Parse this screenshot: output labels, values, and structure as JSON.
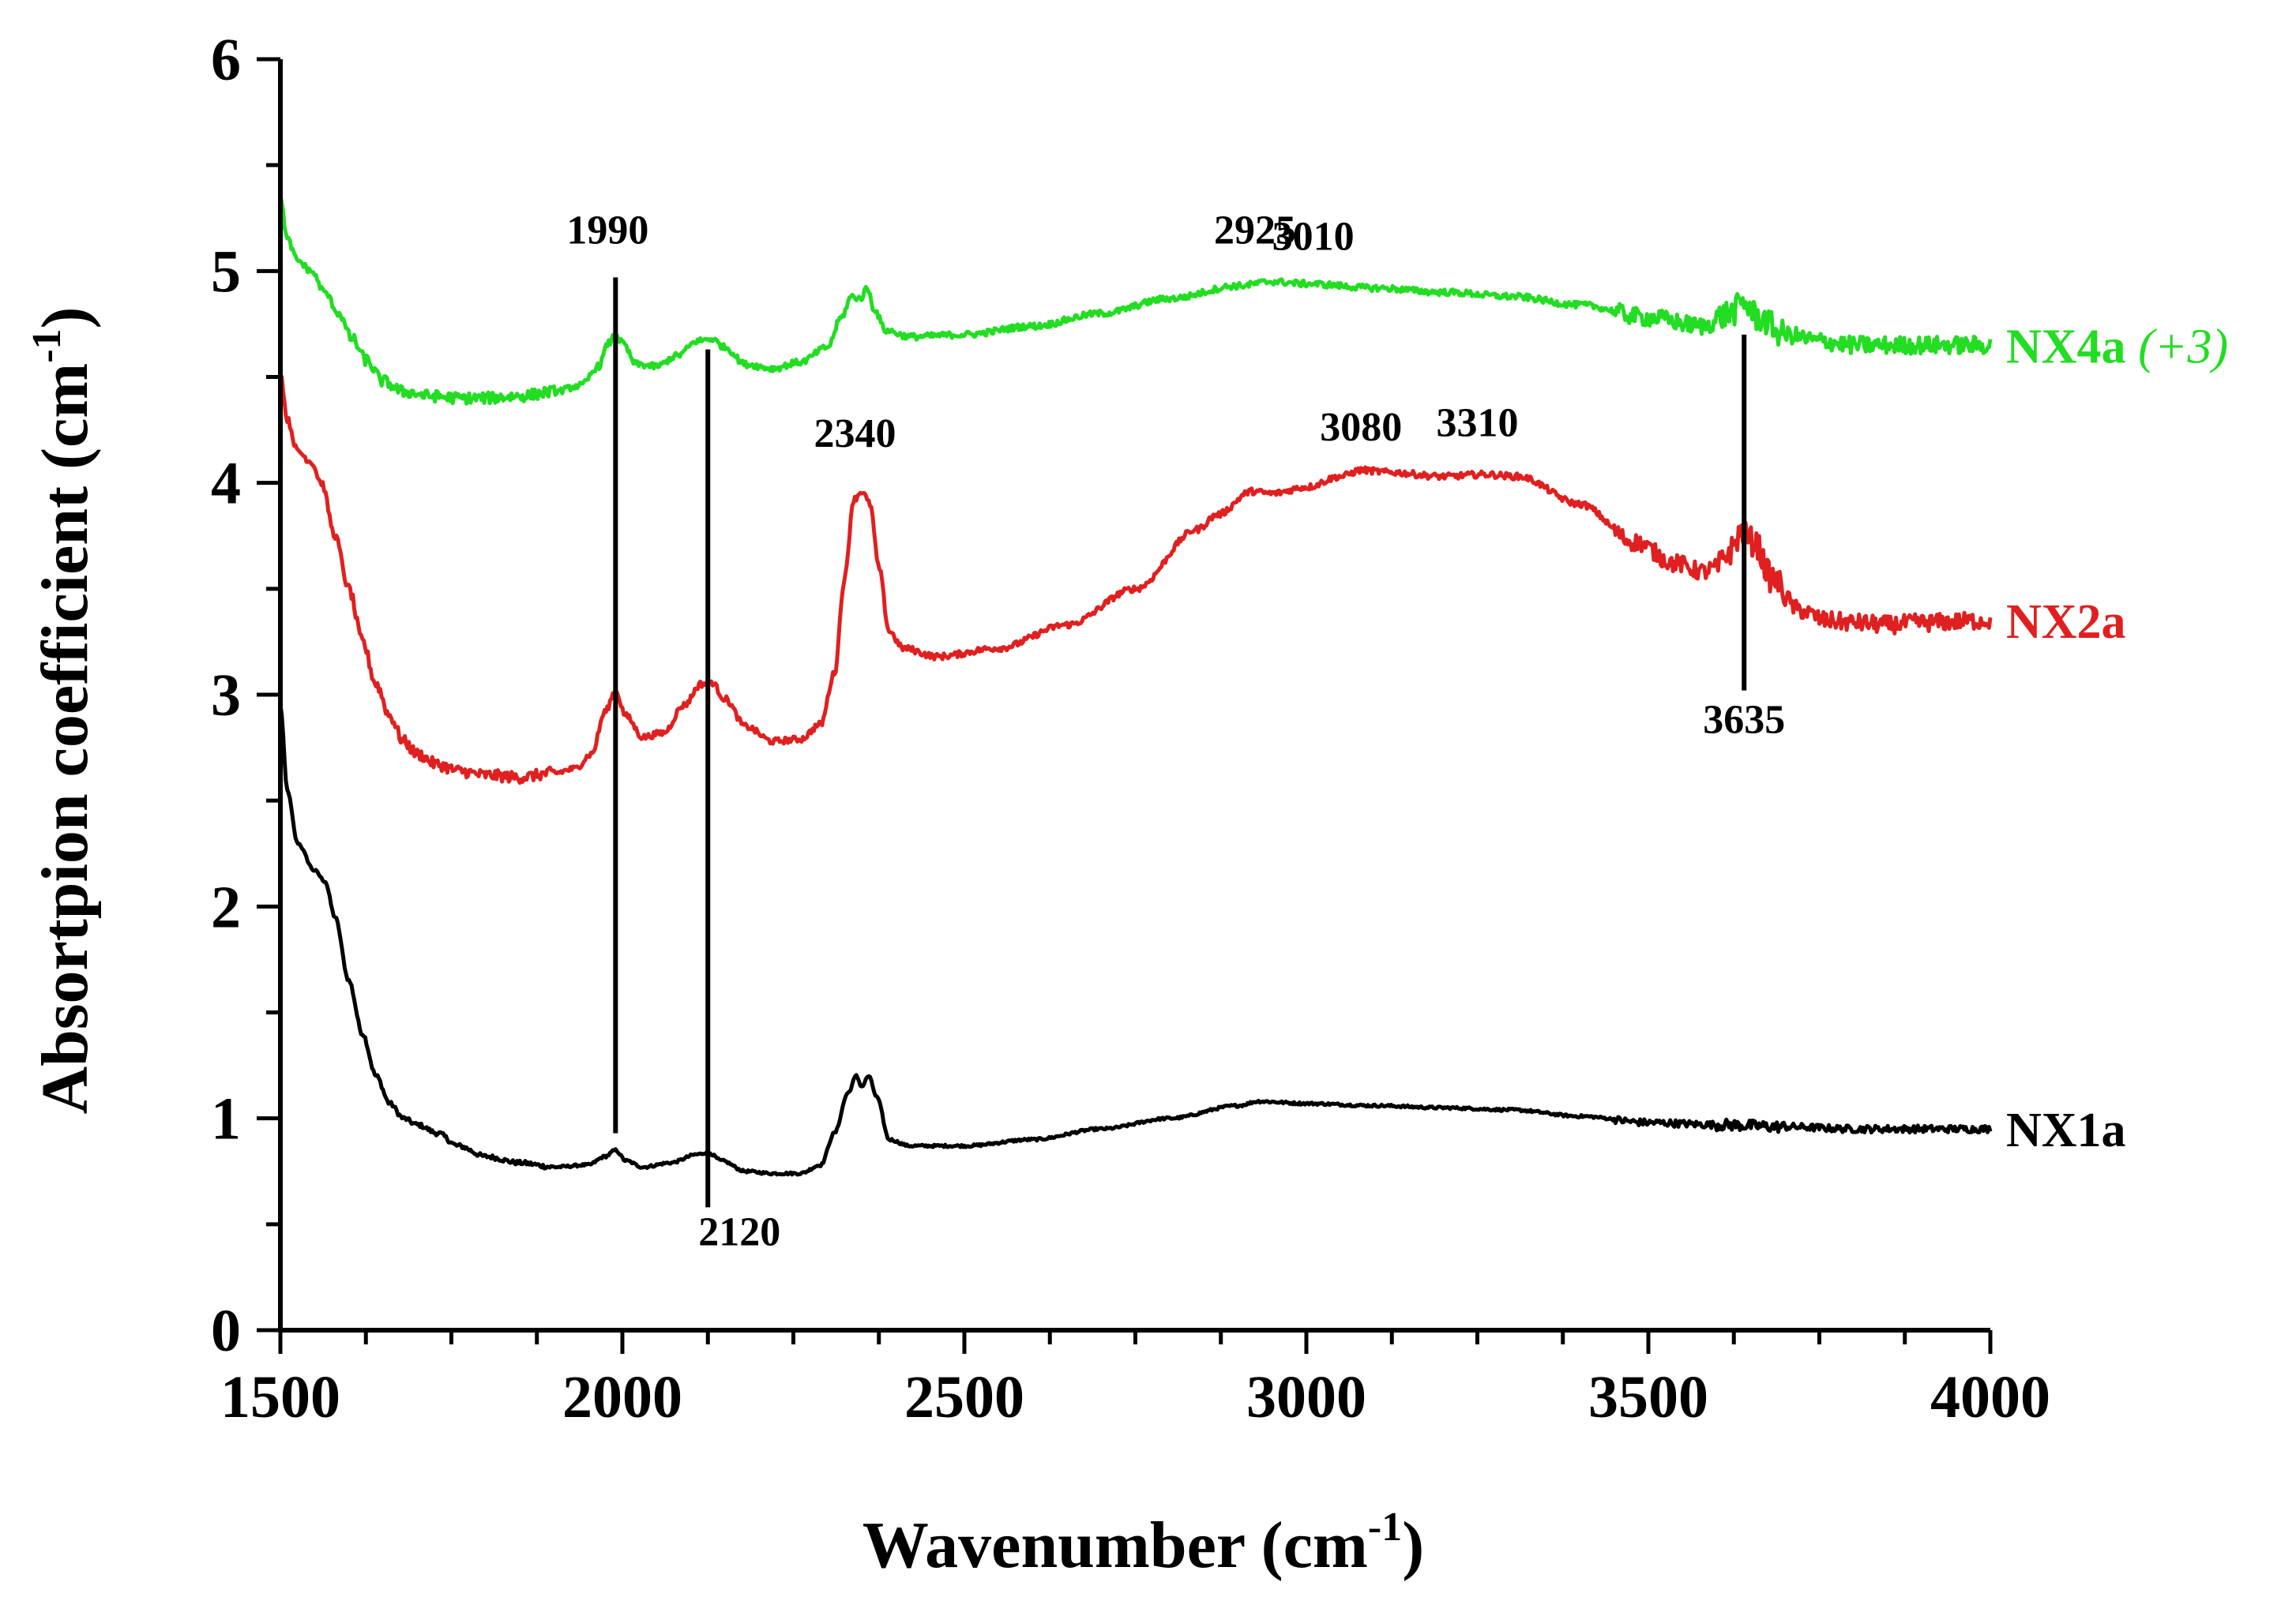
{
  "chart_data": {
    "type": "line",
    "title": "",
    "xlabel": "Wavenumber (cm",
    "xlabel_sup": "-1",
    "xlabel_close": ")",
    "ylabel": "Absortpion coefficient (cm",
    "ylabel_sup": "-1",
    "ylabel_close": ")",
    "xlim": [
      1500,
      4000
    ],
    "ylim": [
      0,
      6
    ],
    "x_major_ticks": [
      1500,
      2000,
      2500,
      3000,
      3500,
      4000
    ],
    "x_tick_labels": [
      "1500",
      "2000",
      "2500",
      "3000",
      "3500",
      "4000"
    ],
    "x_minor_step": 125,
    "y_major_ticks": [
      0,
      1,
      2,
      3,
      4,
      5,
      6
    ],
    "y_tick_labels": [
      "0",
      "1",
      "2",
      "3",
      "4",
      "5",
      "6"
    ],
    "y_minor_step": 0.5,
    "grid": false,
    "series": [
      {
        "name": "NX1a",
        "label": "NX1a",
        "label_suffix": "",
        "color": "#000000",
        "noise": 0.006,
        "points": [
          [
            1500,
            2.95
          ],
          [
            1510,
            2.55
          ],
          [
            1525,
            2.3
          ],
          [
            1550,
            2.17
          ],
          [
            1565,
            2.12
          ],
          [
            1580,
            1.95
          ],
          [
            1600,
            1.65
          ],
          [
            1620,
            1.4
          ],
          [
            1640,
            1.2
          ],
          [
            1660,
            1.07
          ],
          [
            1680,
            1.0
          ],
          [
            1700,
            0.97
          ],
          [
            1730,
            0.93
          ],
          [
            1760,
            0.87
          ],
          [
            1800,
            0.82
          ],
          [
            1850,
            0.79
          ],
          [
            1900,
            0.77
          ],
          [
            1950,
            0.78
          ],
          [
            1975,
            0.82
          ],
          [
            1990,
            0.85
          ],
          [
            2005,
            0.8
          ],
          [
            2030,
            0.77
          ],
          [
            2070,
            0.79
          ],
          [
            2110,
            0.83
          ],
          [
            2125,
            0.84
          ],
          [
            2145,
            0.8
          ],
          [
            2180,
            0.75
          ],
          [
            2220,
            0.74
          ],
          [
            2260,
            0.74
          ],
          [
            2290,
            0.78
          ],
          [
            2310,
            0.93
          ],
          [
            2330,
            1.12
          ],
          [
            2342,
            1.2
          ],
          [
            2350,
            1.15
          ],
          [
            2360,
            1.2
          ],
          [
            2372,
            1.1
          ],
          [
            2390,
            0.9
          ],
          [
            2420,
            0.87
          ],
          [
            2500,
            0.87
          ],
          [
            2600,
            0.9
          ],
          [
            2700,
            0.95
          ],
          [
            2800,
            1.0
          ],
          [
            2900,
            1.06
          ],
          [
            2930,
            1.08
          ],
          [
            3000,
            1.07
          ],
          [
            3100,
            1.06
          ],
          [
            3200,
            1.05
          ],
          [
            3300,
            1.04
          ],
          [
            3400,
            1.01
          ],
          [
            3500,
            0.98
          ],
          [
            3600,
            0.97
          ],
          [
            3700,
            0.96
          ],
          [
            3800,
            0.95
          ],
          [
            4000,
            0.95
          ]
        ]
      },
      {
        "name": "NX2a",
        "label": "NX2a",
        "label_suffix": "",
        "color": "#e02020",
        "noise": 0.015,
        "points": [
          [
            1500,
            4.52
          ],
          [
            1510,
            4.3
          ],
          [
            1525,
            4.15
          ],
          [
            1545,
            4.1
          ],
          [
            1560,
            4.0
          ],
          [
            1580,
            3.75
          ],
          [
            1600,
            3.5
          ],
          [
            1620,
            3.25
          ],
          [
            1640,
            3.05
          ],
          [
            1660,
            2.9
          ],
          [
            1680,
            2.78
          ],
          [
            1700,
            2.72
          ],
          [
            1730,
            2.67
          ],
          [
            1760,
            2.64
          ],
          [
            1800,
            2.62
          ],
          [
            1850,
            2.61
          ],
          [
            1900,
            2.63
          ],
          [
            1930,
            2.65
          ],
          [
            1955,
            2.72
          ],
          [
            1975,
            2.92
          ],
          [
            1990,
            3.02
          ],
          [
            2005,
            2.9
          ],
          [
            2030,
            2.8
          ],
          [
            2060,
            2.82
          ],
          [
            2090,
            2.95
          ],
          [
            2115,
            3.05
          ],
          [
            2130,
            3.06
          ],
          [
            2150,
            2.98
          ],
          [
            2180,
            2.85
          ],
          [
            2220,
            2.78
          ],
          [
            2260,
            2.79
          ],
          [
            2290,
            2.86
          ],
          [
            2310,
            3.1
          ],
          [
            2325,
            3.55
          ],
          [
            2338,
            3.92
          ],
          [
            2350,
            3.96
          ],
          [
            2362,
            3.9
          ],
          [
            2375,
            3.6
          ],
          [
            2390,
            3.3
          ],
          [
            2410,
            3.22
          ],
          [
            2460,
            3.18
          ],
          [
            2550,
            3.22
          ],
          [
            2650,
            3.33
          ],
          [
            2750,
            3.5
          ],
          [
            2840,
            3.78
          ],
          [
            2870,
            3.85
          ],
          [
            2920,
            3.96
          ],
          [
            2950,
            3.95
          ],
          [
            3000,
            3.98
          ],
          [
            3050,
            4.03
          ],
          [
            3080,
            4.06
          ],
          [
            3120,
            4.05
          ],
          [
            3200,
            4.03
          ],
          [
            3260,
            4.04
          ],
          [
            3310,
            4.03
          ],
          [
            3400,
            3.9
          ],
          [
            3480,
            3.72
          ],
          [
            3540,
            3.62
          ],
          [
            3580,
            3.58
          ],
          [
            3600,
            3.6
          ],
          [
            3620,
            3.68
          ],
          [
            3635,
            3.76
          ],
          [
            3655,
            3.72
          ],
          [
            3680,
            3.55
          ],
          [
            3720,
            3.4
          ],
          [
            3760,
            3.35
          ],
          [
            3800,
            3.34
          ],
          [
            3850,
            3.33
          ],
          [
            3900,
            3.34
          ],
          [
            4000,
            3.35
          ]
        ]
      },
      {
        "name": "NX4a",
        "label": "NX4a ",
        "label_suffix": "(+3)",
        "color": "#22dd22",
        "noise": 0.015,
        "points": [
          [
            1500,
            5.35
          ],
          [
            1510,
            5.15
          ],
          [
            1525,
            5.05
          ],
          [
            1545,
            5.0
          ],
          [
            1565,
            4.9
          ],
          [
            1585,
            4.8
          ],
          [
            1605,
            4.68
          ],
          [
            1625,
            4.58
          ],
          [
            1650,
            4.48
          ],
          [
            1680,
            4.43
          ],
          [
            1720,
            4.41
          ],
          [
            1760,
            4.4
          ],
          [
            1800,
            4.4
          ],
          [
            1850,
            4.41
          ],
          [
            1900,
            4.43
          ],
          [
            1940,
            4.46
          ],
          [
            1965,
            4.55
          ],
          [
            1980,
            4.66
          ],
          [
            1990,
            4.7
          ],
          [
            2000,
            4.66
          ],
          [
            2020,
            4.56
          ],
          [
            2050,
            4.55
          ],
          [
            2080,
            4.6
          ],
          [
            2110,
            4.67
          ],
          [
            2130,
            4.68
          ],
          [
            2150,
            4.64
          ],
          [
            2180,
            4.56
          ],
          [
            2220,
            4.54
          ],
          [
            2260,
            4.57
          ],
          [
            2300,
            4.64
          ],
          [
            2320,
            4.78
          ],
          [
            2335,
            4.88
          ],
          [
            2348,
            4.87
          ],
          [
            2358,
            4.92
          ],
          [
            2368,
            4.82
          ],
          [
            2385,
            4.72
          ],
          [
            2420,
            4.69
          ],
          [
            2500,
            4.7
          ],
          [
            2600,
            4.74
          ],
          [
            2700,
            4.8
          ],
          [
            2800,
            4.87
          ],
          [
            2900,
            4.93
          ],
          [
            2950,
            4.95
          ],
          [
            3000,
            4.94
          ],
          [
            3100,
            4.92
          ],
          [
            3200,
            4.9
          ],
          [
            3300,
            4.88
          ],
          [
            3400,
            4.84
          ],
          [
            3500,
            4.78
          ],
          [
            3580,
            4.74
          ],
          [
            3620,
            4.8
          ],
          [
            3640,
            4.85
          ],
          [
            3660,
            4.78
          ],
          [
            3700,
            4.7
          ],
          [
            3750,
            4.67
          ],
          [
            3800,
            4.65
          ],
          [
            3900,
            4.65
          ],
          [
            4000,
            4.65
          ]
        ]
      }
    ],
    "markers": [
      {
        "label": "1990",
        "x": 1990,
        "y_top": 4.97,
        "y_bottom": 0.93,
        "label_side": "top",
        "label_y": 5.13
      },
      {
        "label": "2120",
        "x": 2125,
        "y_top": 4.63,
        "y_bottom": 0.58,
        "label_side": "bottom",
        "label_y": 0.4
      }
    ],
    "marker_3635": {
      "label": "3635",
      "x": 3640,
      "y_top": 4.7,
      "y_bottom": 3.02,
      "label_y": 2.82
    },
    "annotations": [
      {
        "text": "2925",
        "x": 2925,
        "y": 5.13
      },
      {
        "text": "3010",
        "x": 3010,
        "y": 5.1
      },
      {
        "text": "2340",
        "x": 2340,
        "y": 4.17
      },
      {
        "text": "3080",
        "x": 3080,
        "y": 4.2
      },
      {
        "text": "3310",
        "x": 3250,
        "y": 4.22
      }
    ]
  }
}
